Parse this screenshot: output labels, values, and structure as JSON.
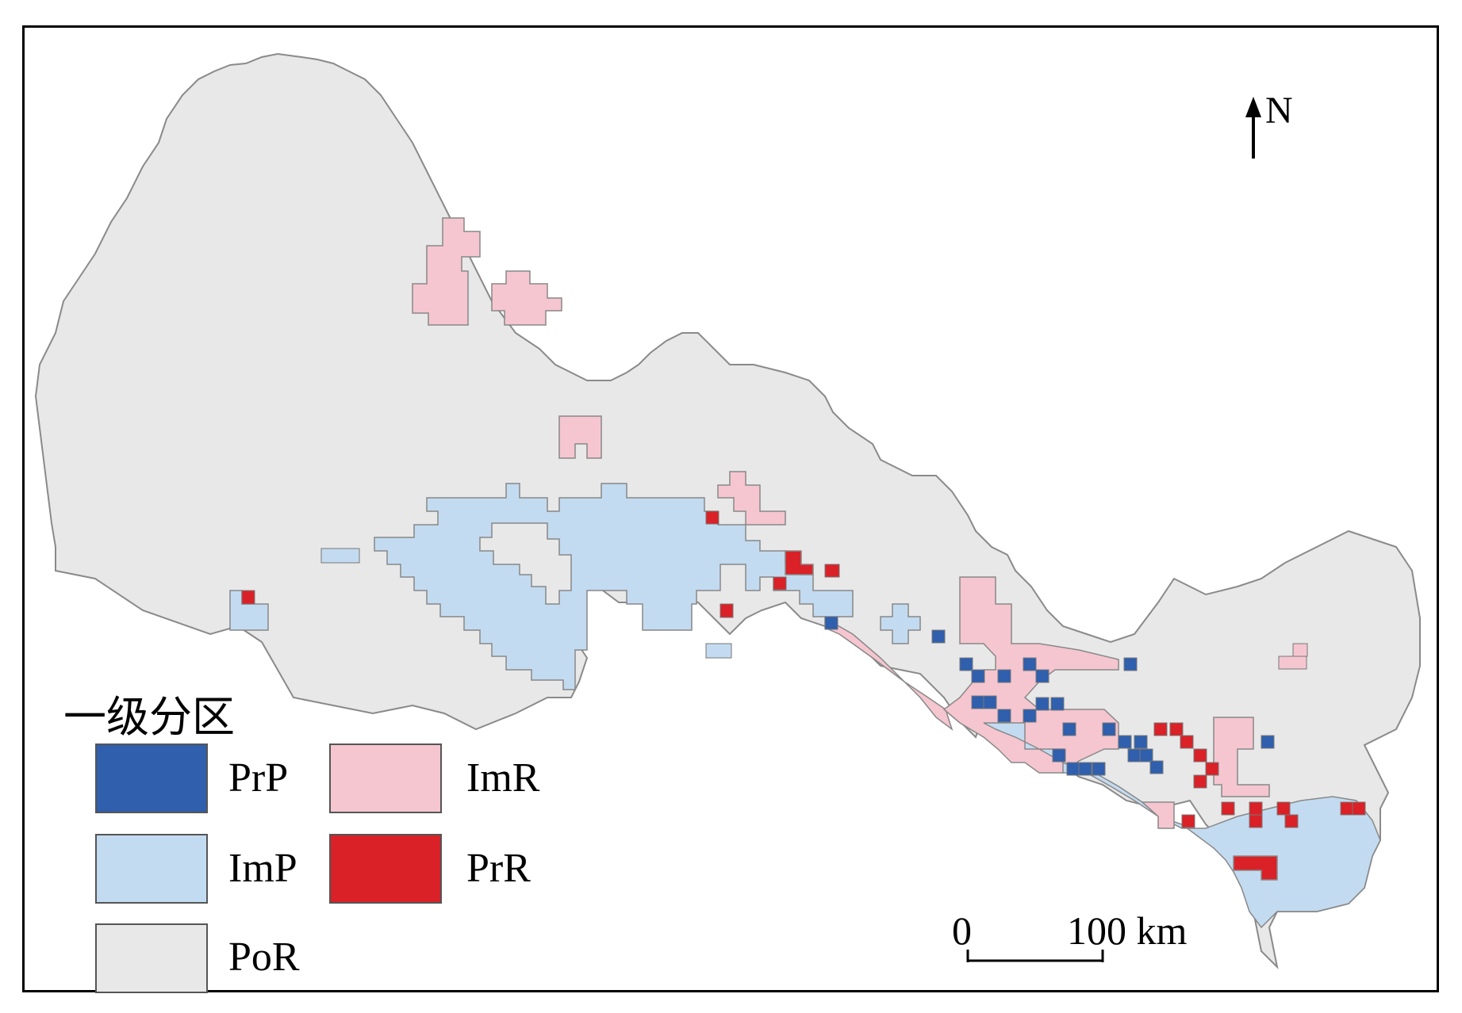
{
  "legend": {
    "title": "一级分区",
    "items": [
      {
        "code": "PrP",
        "color": "#2f5fad"
      },
      {
        "code": "ImR",
        "color": "#f5c6d0"
      },
      {
        "code": "ImP",
        "color": "#c3dbf0"
      },
      {
        "code": "PrR",
        "color": "#d92127"
      },
      {
        "code": "PoR",
        "color": "#e8e8e8"
      }
    ]
  },
  "north_arrow": {
    "label": "N"
  },
  "scale_bar": {
    "start": "0",
    "end": "100 km"
  },
  "colors": {
    "base": "#e8e8e8",
    "outline": "#8a8a8a",
    "PrP": "#2f5fad",
    "ImP": "#c3dbf0",
    "ImR": "#f5c6d0",
    "PrR": "#d92127",
    "PoR": "#e8e8e8"
  }
}
